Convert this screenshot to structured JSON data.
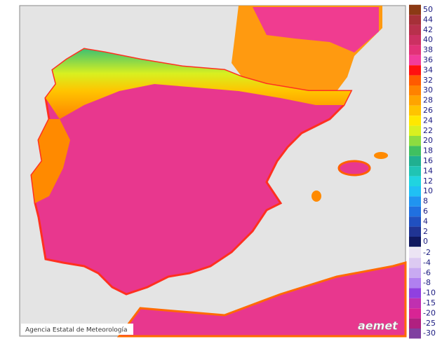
{
  "map": {
    "attribution": "Agencia Estatal de Meteorología",
    "logo": "aemet"
  },
  "legend": {
    "groups": [
      {
        "items": [
          {
            "label": 50,
            "color": "#8b3a14"
          },
          {
            "label": 44,
            "color": "#a63038"
          },
          {
            "label": 42,
            "color": "#b8304c"
          },
          {
            "label": 40,
            "color": "#cc3062"
          },
          {
            "label": 38,
            "color": "#e23278"
          },
          {
            "label": 36,
            "color": "#f23c9c"
          },
          {
            "label": 34,
            "color": "#ff1010"
          },
          {
            "label": 32,
            "color": "#ff5a00"
          },
          {
            "label": 30,
            "color": "#ff8200"
          },
          {
            "label": 28,
            "color": "#ffa400"
          },
          {
            "label": 26,
            "color": "#ffc400"
          },
          {
            "label": 24,
            "color": "#ffe800"
          },
          {
            "label": 22,
            "color": "#d8f020"
          },
          {
            "label": 20,
            "color": "#8cdc40"
          },
          {
            "label": 18,
            "color": "#40c060"
          },
          {
            "label": 16,
            "color": "#20b090"
          },
          {
            "label": 14,
            "color": "#20c4b4"
          },
          {
            "label": 12,
            "color": "#20d4e0"
          },
          {
            "label": 10,
            "color": "#20c0f4"
          },
          {
            "label": 8,
            "color": "#2094f0"
          },
          {
            "label": 6,
            "color": "#2070e0"
          },
          {
            "label": 4,
            "color": "#2050c0"
          },
          {
            "label": 2,
            "color": "#203494"
          },
          {
            "label": 0,
            "color": "#101860"
          }
        ]
      },
      {
        "items": [
          {
            "label": -2,
            "color": "#ece4f4"
          },
          {
            "label": -4,
            "color": "#dccaf2"
          },
          {
            "label": -6,
            "color": "#c8aaf2"
          },
          {
            "label": -8,
            "color": "#b080f0"
          },
          {
            "label": -10,
            "color": "#9040e0"
          },
          {
            "label": -15,
            "color": "#c030b0"
          },
          {
            "label": -20,
            "color": "#d82494"
          },
          {
            "label": -25,
            "color": "#b02080"
          },
          {
            "label": -30,
            "color": "#8040a0"
          }
        ]
      }
    ]
  }
}
